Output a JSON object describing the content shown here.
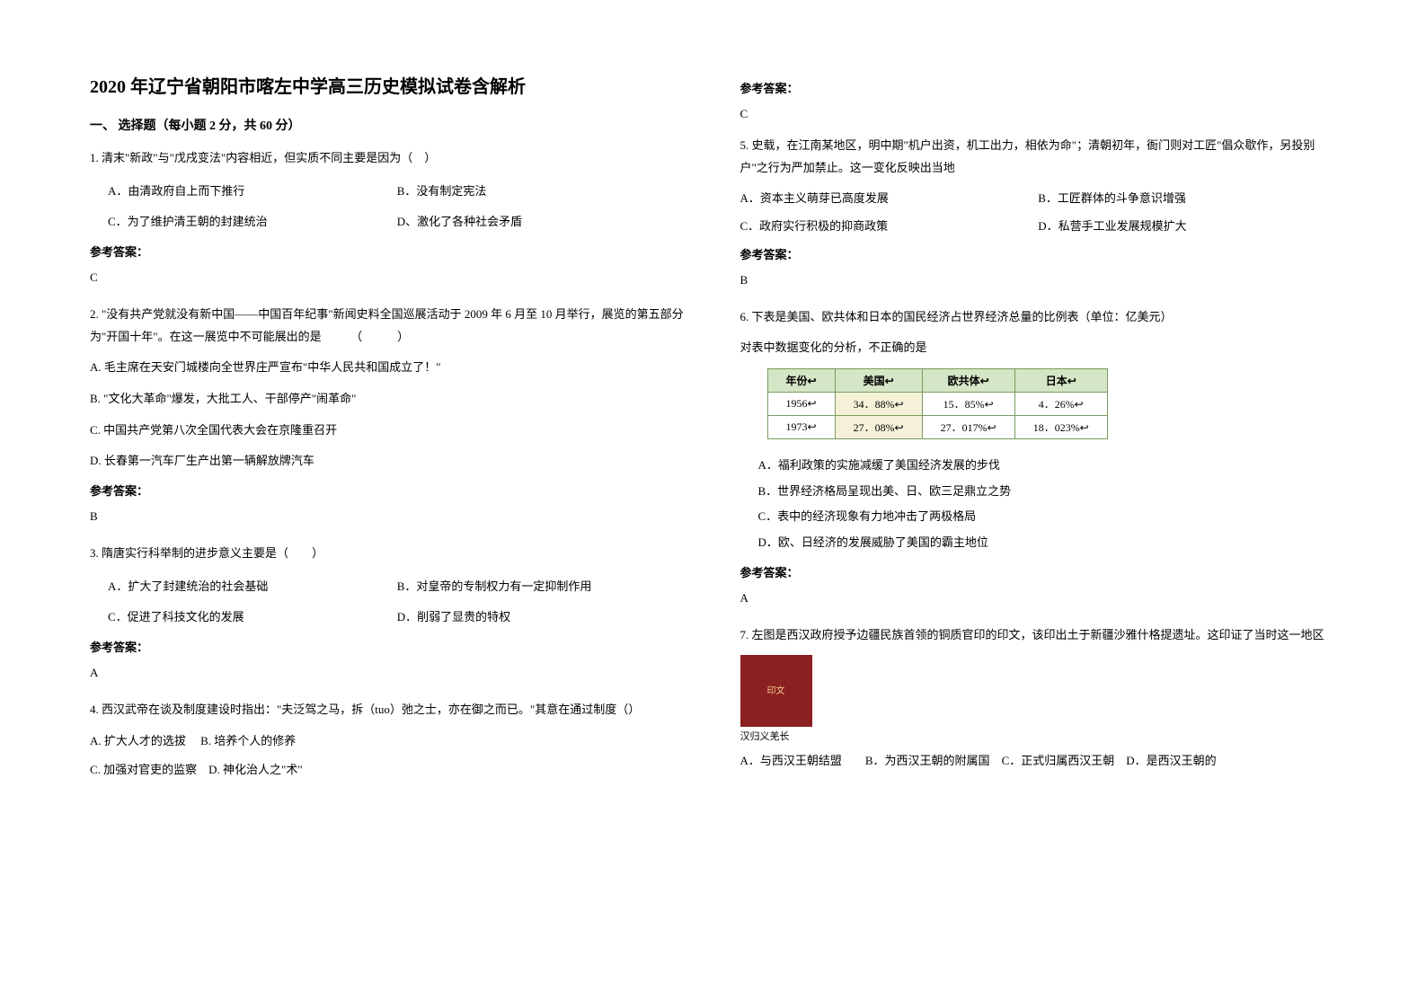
{
  "title": "2020 年辽宁省朝阳市喀左中学高三历史模拟试卷含解析",
  "section1": {
    "header": "一、 选择题（每小题 2 分，共 60 分）"
  },
  "q1": {
    "stem": "1. 清末\"新政\"与\"戊戌变法\"内容相近，但实质不同主要是因为（　）",
    "optA": "A．由清政府自上而下推行",
    "optB": "B．没有制定宪法",
    "optC": "C．为了维护清王朝的封建统治",
    "optD": "D、激化了各种社会矛盾",
    "answerLabel": "参考答案：",
    "answer": "C"
  },
  "q2": {
    "stem": "2. \"没有共产党就没有新中国——中国百年纪事\"新闻史料全国巡展活动于 2009 年 6 月至 10 月举行，展览的第五部分为\"开国十年\"。在这一展览中不可能展出的是　　　（　　　）",
    "optA": "A. 毛主席在天安门城楼向全世界庄严宣布\"中华人民共和国成立了！\"",
    "optB": "B. \"文化大革命\"爆发，大批工人、干部停产\"闹革命\"",
    "optC": "C. 中国共产党第八次全国代表大会在京隆重召开",
    "optD": "D.  长春第一汽车厂生产出第一辆解放牌汽车",
    "answerLabel": "参考答案：",
    "answer": "B"
  },
  "q3": {
    "stem": "3. 隋唐实行科举制的进步意义主要是（　　）",
    "optA": "A．扩大了封建统治的社会基础",
    "optB": "B．对皇帝的专制权力有一定抑制作用",
    "optC": "C．促进了科技文化的发展",
    "optD": "D．削弱了显贵的特权",
    "answerLabel": "参考答案：",
    "answer": "A"
  },
  "q4": {
    "stem": "4. 西汉武帝在谈及制度建设时指出：\"夫泛驾之马，拆（tuo）弛之士，亦在御之而已。\"其意在通过制度（）",
    "optA": "A. 扩大人才的选拔",
    "optB": "B. 培养个人的修养",
    "optC": "C. 加强对官吏的监察",
    "optD": "D. 神化治人之\"术\"",
    "answerLabel": "参考答案：",
    "answer": "C"
  },
  "q5": {
    "stem": "5. 史载，在江南某地区，明中期\"机户出资，机工出力，相依为命\"；清朝初年，衙门则对工匠\"倡众歇作，另投别户\"之行为严加禁止。这一变化反映出当地",
    "optA": "A．资本主义萌芽已高度发展",
    "optB": "B．工匠群体的斗争意识增强",
    "optC": "C．政府实行积极的抑商政策",
    "optD": "D．私营手工业发展规模扩大",
    "answerLabel": "参考答案：",
    "answer": "B"
  },
  "q6": {
    "stem": "6. 下表是美国、欧共体和日本的国民经济占世界经济总量的比例表（单位：亿美元）",
    "sub": "对表中数据变化的分析，不正确的是",
    "table": {
      "headers": [
        "年份↩",
        "美国↩",
        "欧共体↩",
        "日本↩"
      ],
      "rows": [
        [
          "1956↩",
          "34．88%↩",
          "15．85%↩",
          "4．26%↩"
        ],
        [
          "1973↩",
          "27．08%↩",
          "27．017%↩",
          "18．023%↩"
        ]
      ],
      "header_bg": "#d4e6c5",
      "border_color": "#7a9b5e",
      "highlight_bg": "#f5f0d8"
    },
    "optA": "A．福利政策的实施减缓了美国经济发展的步伐",
    "optB": "B．世界经济格局呈现出美、日、欧三足鼎立之势",
    "optC": "C．表中的经济现象有力地冲击了两极格局",
    "optD": "D．欧、日经济的发展威胁了美国的霸主地位",
    "answerLabel": "参考答案：",
    "answer": "A"
  },
  "q7": {
    "stem": "7. 左图是西汉政府授予边疆民族首领的铜质官印的印文，该印出土于新疆沙雅什格提遗址。这印证了当时这一地区",
    "sealCaption": "汉归义羌长",
    "sealText": "印文",
    "optA": "A．与西汉王朝结盟",
    "optB": "B．为西汉王朝的附属国",
    "optC": "C．正式归属西汉王朝",
    "optD": "D．是西汉王朝的"
  },
  "colors": {
    "background": "#ffffff",
    "text": "#000000",
    "seal_bg": "#8b2020",
    "seal_text": "#f0d090"
  }
}
